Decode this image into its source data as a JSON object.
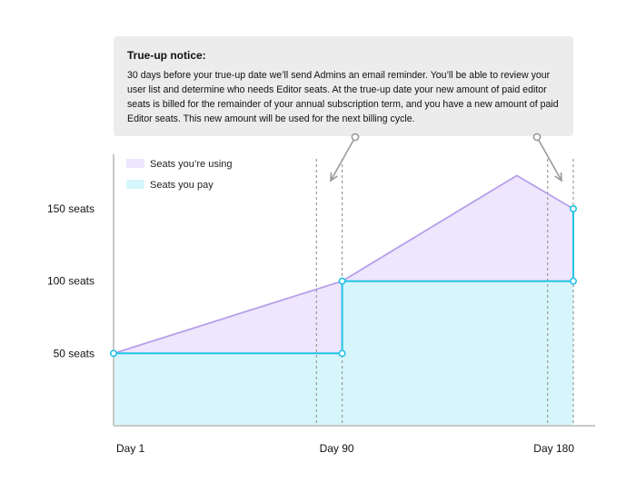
{
  "notice": {
    "title": "True-up notice:",
    "body": "30 days before your true-up date we’ll send Admins an email reminder. You’ll be able to review your user list and determine who needs Editor seats. At the true-up date your new amount of paid editor seats is billed for the remainder of your annual subscription term, and you have a new amount of paid Editor seats. This new amount will be used for the next billing cycle."
  },
  "chart_data": {
    "type": "area",
    "title": "",
    "xlabel": "",
    "ylabel": "",
    "x_ticks": [
      {
        "x": 1,
        "label": "Day 1"
      },
      {
        "x": 90,
        "label": "Day 90"
      },
      {
        "x": 180,
        "label": "Day 180"
      }
    ],
    "y_ticks": [
      {
        "y": 50,
        "label": "50 seats"
      },
      {
        "y": 100,
        "label": "100 seats"
      },
      {
        "y": 150,
        "label": "150 seats"
      }
    ],
    "xlim": [
      1,
      188
    ],
    "ylim": [
      0,
      175
    ],
    "reference_days": [
      80,
      90,
      170,
      180
    ],
    "series": [
      {
        "name": "Seats you’re using",
        "color": "#ede6fd",
        "line_color": "#b79ee8",
        "points": [
          [
            1,
            50
          ],
          [
            90,
            100
          ],
          [
            158,
            173
          ],
          [
            180,
            150
          ]
        ]
      },
      {
        "name": "Seats you pay",
        "color": "#d6f6fb",
        "line_color": "#22c3e6",
        "points": [
          [
            1,
            50
          ],
          [
            90,
            50
          ],
          [
            90,
            100
          ],
          [
            180,
            100
          ],
          [
            180,
            150
          ]
        ],
        "markers": [
          [
            1,
            50
          ],
          [
            90,
            50
          ],
          [
            90,
            100
          ],
          [
            180,
            100
          ],
          [
            180,
            150
          ]
        ]
      }
    ],
    "legend": "top-left",
    "grid": false
  }
}
